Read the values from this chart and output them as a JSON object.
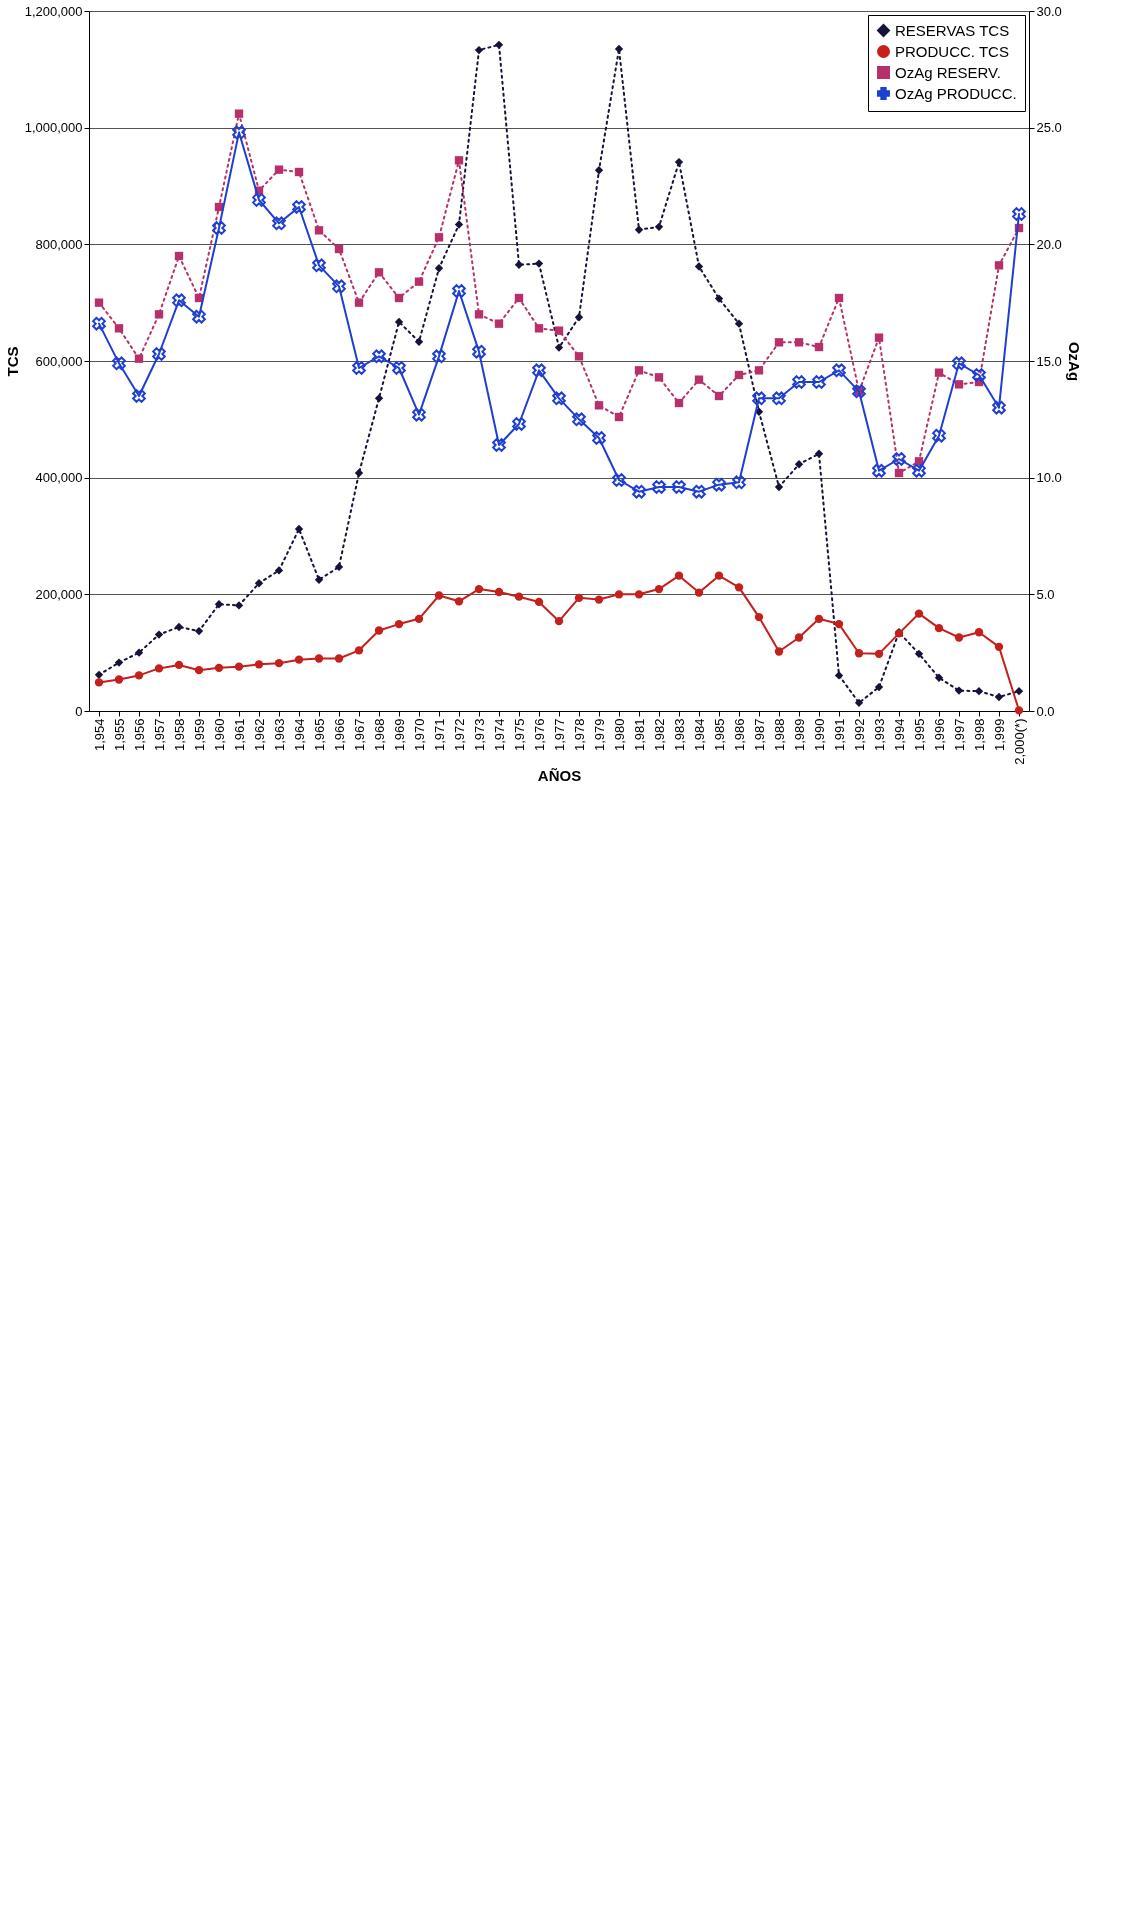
{
  "chart_data": {
    "type": "line",
    "xlabel": "AÑOS",
    "ylabel": "TCS",
    "y2label": "OzAg",
    "categories": [
      "1,954",
      "1,955",
      "1,956",
      "1,957",
      "1,958",
      "1,959",
      "1,960",
      "1,961",
      "1,962",
      "1,963",
      "1,964",
      "1,965",
      "1,966",
      "1,967",
      "1,968",
      "1,969",
      "1,970",
      "1,971",
      "1,972",
      "1,973",
      "1,974",
      "1,975",
      "1,976",
      "1,977",
      "1,978",
      "1,979",
      "1,980",
      "1,981",
      "1,982",
      "1,983",
      "1,984",
      "1,985",
      "1,986",
      "1,987",
      "1,988",
      "1,989",
      "1,990",
      "1,991",
      "1,992",
      "1,993",
      "1,994",
      "1,995",
      "1,996",
      "1,997",
      "1,998",
      "1,999",
      "2,000(*)"
    ],
    "series": [
      {
        "name": "RESERVAS TCS",
        "color": "#14143a",
        "marker": "diamond",
        "line_style": "dotted",
        "axis": "y",
        "values": [
          62000,
          83000,
          100000,
          131000,
          144000,
          137000,
          183000,
          181000,
          219000,
          241000,
          312000,
          225000,
          247000,
          408000,
          536000,
          667000,
          633000,
          759000,
          834000,
          1133000,
          1142000,
          765000,
          767000,
          623000,
          675000,
          927000,
          1135000,
          825000,
          830000,
          941000,
          762000,
          707000,
          664000,
          513000,
          384000,
          423000,
          441000,
          61000,
          14000,
          41000,
          135000,
          98000,
          57000,
          35000,
          34000,
          24000,
          34000
        ]
      },
      {
        "name": "PRODUCC. TCS",
        "color": "#c4201c",
        "marker": "circle",
        "line_style": "solid",
        "axis": "y",
        "values": [
          49000,
          54000,
          61000,
          73000,
          79000,
          70000,
          74000,
          76000,
          80000,
          82000,
          88000,
          90000,
          90000,
          104000,
          138000,
          149000,
          158000,
          198000,
          188000,
          209000,
          204000,
          196000,
          187000,
          154000,
          194000,
          191000,
          200000,
          200000,
          209000,
          232000,
          203000,
          232000,
          212000,
          161000,
          102000,
          126000,
          158000,
          149000,
          99000,
          98000,
          133000,
          167000,
          142000,
          126000,
          135000,
          110000,
          1000
        ]
      },
      {
        "name": "OzAg  RESERV.",
        "color": "#b8306a",
        "marker": "square",
        "line_style": "dotted",
        "axis": "y2",
        "values": [
          17.5,
          16.4,
          15.1,
          17.0,
          19.5,
          17.7,
          21.6,
          25.6,
          22.3,
          23.2,
          23.1,
          20.6,
          19.8,
          17.5,
          18.8,
          17.7,
          18.4,
          20.3,
          23.6,
          17.0,
          16.6,
          17.7,
          16.4,
          16.3,
          15.2,
          13.1,
          12.6,
          14.6,
          14.3,
          13.2,
          14.2,
          13.5,
          14.4,
          14.6,
          15.8,
          15.8,
          15.6,
          17.7,
          13.7,
          16.0,
          10.2,
          10.7,
          14.5,
          14.0,
          14.1,
          19.1,
          20.7
        ]
      },
      {
        "name": "OzAg PRODUCC.",
        "color": "#1f3fd0",
        "marker": "cross",
        "line_style": "solid",
        "axis": "y2",
        "values": [
          16.6,
          14.9,
          13.5,
          15.3,
          17.6,
          16.9,
          20.7,
          24.8,
          21.9,
          20.9,
          21.6,
          19.1,
          18.2,
          14.7,
          15.2,
          14.7,
          12.7,
          15.2,
          18.0,
          15.4,
          11.4,
          12.3,
          14.6,
          13.4,
          12.5,
          11.7,
          9.9,
          9.4,
          9.6,
          9.6,
          9.4,
          9.7,
          9.8,
          13.4,
          13.4,
          14.1,
          14.1,
          14.6,
          13.7,
          10.3,
          10.8,
          10.3,
          11.8,
          14.9,
          14.4,
          13.0,
          21.3
        ]
      }
    ],
    "ylim": [
      0,
      1200000
    ],
    "yticks": [
      {
        "value": 0,
        "label": "0"
      },
      {
        "value": 200000,
        "label": "200,000"
      },
      {
        "value": 400000,
        "label": "400,000"
      },
      {
        "value": 600000,
        "label": "600,000"
      },
      {
        "value": 800000,
        "label": "800,000"
      },
      {
        "value": 1000000,
        "label": "1,000,000"
      },
      {
        "value": 1200000,
        "label": "1,200,000"
      }
    ],
    "y2lim": [
      0,
      30
    ],
    "y2ticks": [
      {
        "value": 0,
        "label": "0.0"
      },
      {
        "value": 5,
        "label": "5.0"
      },
      {
        "value": 10,
        "label": "10.0"
      },
      {
        "value": 15,
        "label": "15.0"
      },
      {
        "value": 20,
        "label": "20.0"
      },
      {
        "value": 25,
        "label": "25.0"
      },
      {
        "value": 30,
        "label": "30.0"
      }
    ],
    "grid": "y",
    "legend": "top right"
  }
}
